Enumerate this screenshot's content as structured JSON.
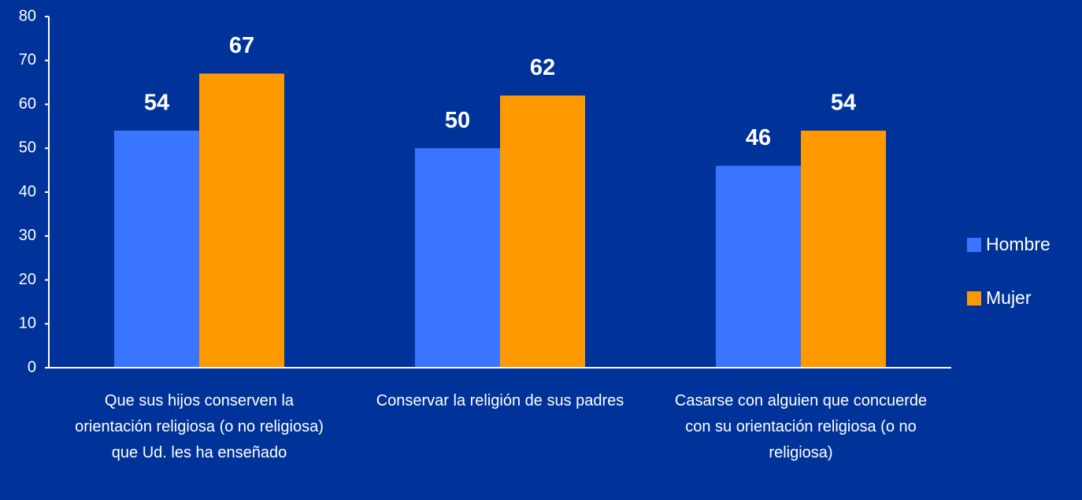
{
  "chart_data": {
    "type": "bar",
    "categories": [
      "Que sus hijos conserven la orientación religiosa (o no religiosa) que Ud. les ha enseñado",
      "Conservar la religión de sus padres",
      "Casarse con alguien que concuerde con su orientación religiosa (o no religiosa)"
    ],
    "series": [
      {
        "name": "Hombre",
        "color": "#3a75ff",
        "values": [
          54,
          50,
          46
        ]
      },
      {
        "name": "Mujer",
        "color": "#ff9900",
        "values": [
          67,
          62,
          54
        ]
      }
    ],
    "ylim": [
      0,
      80
    ],
    "yticks": [
      0,
      10,
      20,
      30,
      40,
      50,
      60,
      70,
      80
    ],
    "legend": "right"
  }
}
